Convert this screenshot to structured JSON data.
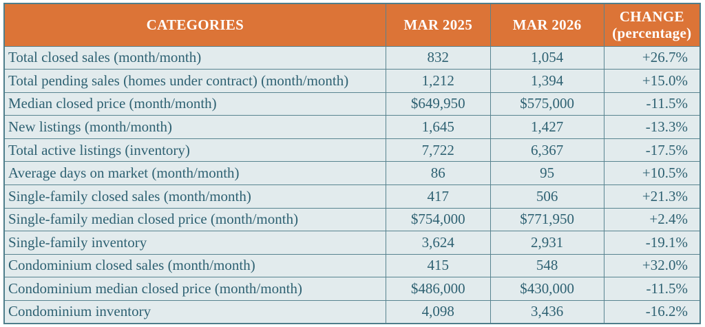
{
  "colors": {
    "header_bg": "#dc7437",
    "header_text": "#ffffff",
    "row_bg": "#e2ebed",
    "body_text": "#2e6172",
    "grid_border": "#57838f",
    "outer_border": "#4e7e8b",
    "page_bg": "#ffffff"
  },
  "header": {
    "categories": "CATEGORIES",
    "mar_2025": "MAR 2025",
    "mar_2026": "MAR 2026",
    "change_line1": "CHANGE",
    "change_line2": "(percentage)"
  },
  "rows": [
    {
      "category": "Total closed sales (month/month)",
      "mar_2025": "832",
      "mar_2026": "1,054",
      "change": "+26.7%"
    },
    {
      "category": "Total pending sales (homes under contract) (month/month)",
      "mar_2025": "1,212",
      "mar_2026": "1,394",
      "change": "+15.0%"
    },
    {
      "category": "Median closed price (month/month)",
      "mar_2025": "$649,950",
      "mar_2026": "$575,000",
      "change": "-11.5%"
    },
    {
      "category": "New listings (month/month)",
      "mar_2025": "1,645",
      "mar_2026": "1,427",
      "change": "-13.3%"
    },
    {
      "category": "Total active listings (inventory)",
      "mar_2025": "7,722",
      "mar_2026": "6,367",
      "change": "-17.5%"
    },
    {
      "category": "Average days on market (month/month)",
      "mar_2025": "86",
      "mar_2026": "95",
      "change": "+10.5%"
    },
    {
      "category": "Single-family closed sales (month/month)",
      "mar_2025": "417",
      "mar_2026": "506",
      "change": "+21.3%"
    },
    {
      "category": "Single-family median closed price (month/month)",
      "mar_2025": "$754,000",
      "mar_2026": "$771,950",
      "change": "+2.4%"
    },
    {
      "category": "Single-family inventory",
      "mar_2025": "3,624",
      "mar_2026": "2,931",
      "change": "-19.1%"
    },
    {
      "category": "Condominium closed sales (month/month)",
      "mar_2025": "415",
      "mar_2026": "548",
      "change": "+32.0%"
    },
    {
      "category": "Condominium median closed price (month/month)",
      "mar_2025": "$486,000",
      "mar_2026": "$430,000",
      "change": "-11.5%"
    },
    {
      "category": "Condominium inventory",
      "mar_2025": "4,098",
      "mar_2026": "3,436",
      "change": "-16.2%"
    }
  ],
  "chart_data": {
    "type": "table",
    "title": "",
    "columns": [
      "CATEGORIES",
      "MAR 2025",
      "MAR 2026",
      "CHANGE (percentage)"
    ],
    "categories": [
      "Total closed sales (month/month)",
      "Total pending sales (homes under contract) (month/month)",
      "Median closed price (month/month)",
      "New listings (month/month)",
      "Total active listings (inventory)",
      "Average days on market (month/month)",
      "Single-family closed sales (month/month)",
      "Single-family median closed price (month/month)",
      "Single-family inventory",
      "Condominium closed sales (month/month)",
      "Condominium median closed price (month/month)",
      "Condominium inventory"
    ],
    "series": [
      {
        "name": "MAR 2025",
        "values": [
          832,
          1212,
          649950,
          1645,
          7722,
          86,
          417,
          754000,
          3624,
          415,
          486000,
          4098
        ]
      },
      {
        "name": "MAR 2026",
        "values": [
          1054,
          1394,
          575000,
          1427,
          6367,
          95,
          506,
          771950,
          2931,
          548,
          430000,
          3436
        ]
      },
      {
        "name": "CHANGE (percentage)",
        "values": [
          26.7,
          15.0,
          -11.5,
          -13.3,
          -17.5,
          10.5,
          21.3,
          2.4,
          -19.1,
          32.0,
          -11.5,
          -16.2
        ]
      }
    ]
  }
}
